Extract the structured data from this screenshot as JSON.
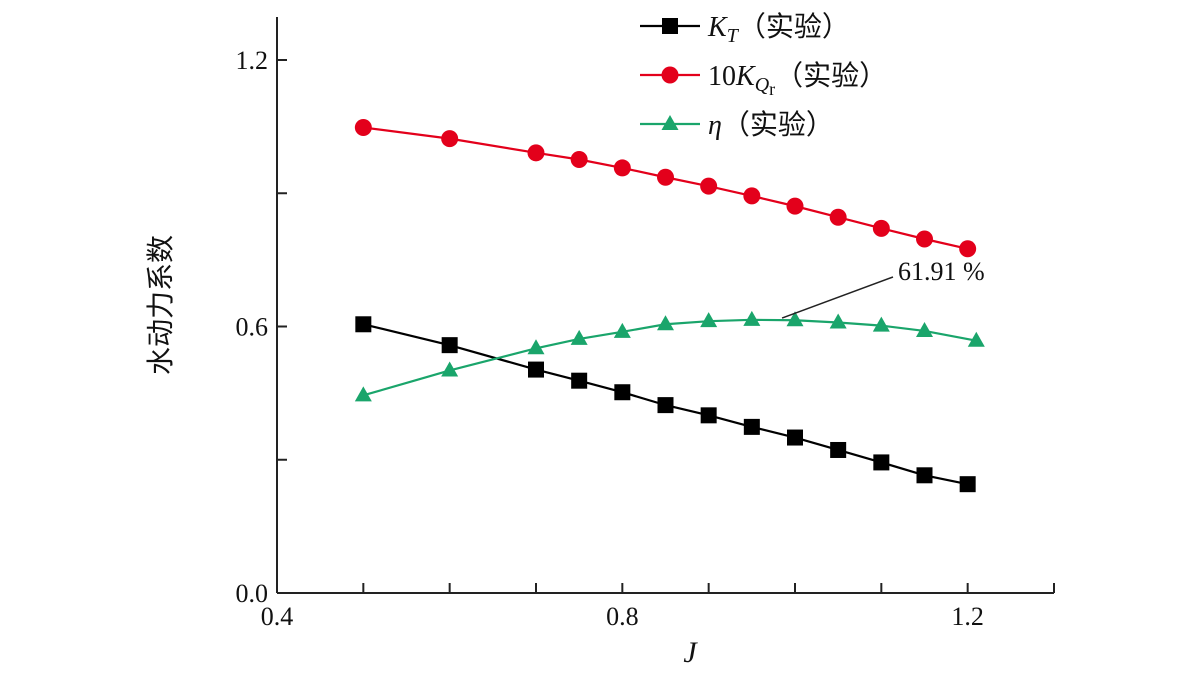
{
  "chart_data": {
    "type": "line",
    "xlabel": "J",
    "ylabel": "水动力系数",
    "xlim": [
      0.4,
      1.3
    ],
    "ylim": [
      0.0,
      1.2
    ],
    "xticks": [
      "0.4",
      "0.8",
      "1.2"
    ],
    "yticks": [
      "0.0",
      "0.6",
      "1.2"
    ],
    "grid": false,
    "legend_position": "top-right",
    "series": [
      {
        "name": "K_T（实验）",
        "legend": {
          "main": "K",
          "sub": "T",
          "suffix": "（实验）"
        },
        "color": "#000000",
        "marker": "square",
        "x": [
          0.5,
          0.6,
          0.7,
          0.75,
          0.8,
          0.85,
          0.9,
          0.95,
          1.0,
          1.05,
          1.1,
          1.15,
          1.2
        ],
        "y": [
          0.605,
          0.558,
          0.503,
          0.478,
          0.452,
          0.423,
          0.4,
          0.374,
          0.35,
          0.322,
          0.294,
          0.265,
          0.245
        ]
      },
      {
        "name": "10K_Qr（实验）",
        "legend": {
          "prefix": "10",
          "main": "K",
          "sub": "Q",
          "subsub": "r",
          "suffix": "（实验）"
        },
        "color": "#e3001b",
        "marker": "circle",
        "x": [
          0.5,
          0.6,
          0.7,
          0.75,
          0.8,
          0.85,
          0.9,
          0.95,
          1.0,
          1.05,
          1.1,
          1.15,
          1.2
        ],
        "y": [
          1.048,
          1.023,
          0.991,
          0.976,
          0.957,
          0.936,
          0.916,
          0.894,
          0.871,
          0.846,
          0.821,
          0.797,
          0.775
        ]
      },
      {
        "name": "η（实验）",
        "legend": {
          "main": "η",
          "suffix": "（实验）"
        },
        "color": "#1aa56b",
        "marker": "triangle",
        "x": [
          0.5,
          0.6,
          0.7,
          0.75,
          0.8,
          0.85,
          0.9,
          0.95,
          1.0,
          1.05,
          1.1,
          1.15,
          1.21
        ],
        "y": [
          0.445,
          0.501,
          0.551,
          0.572,
          0.588,
          0.605,
          0.612,
          0.615,
          0.614,
          0.609,
          0.602,
          0.59,
          0.568
        ]
      }
    ],
    "annotations": [
      {
        "text": "61.91 %",
        "points_to": {
          "x": 0.985,
          "y": 0.619
        }
      }
    ]
  }
}
